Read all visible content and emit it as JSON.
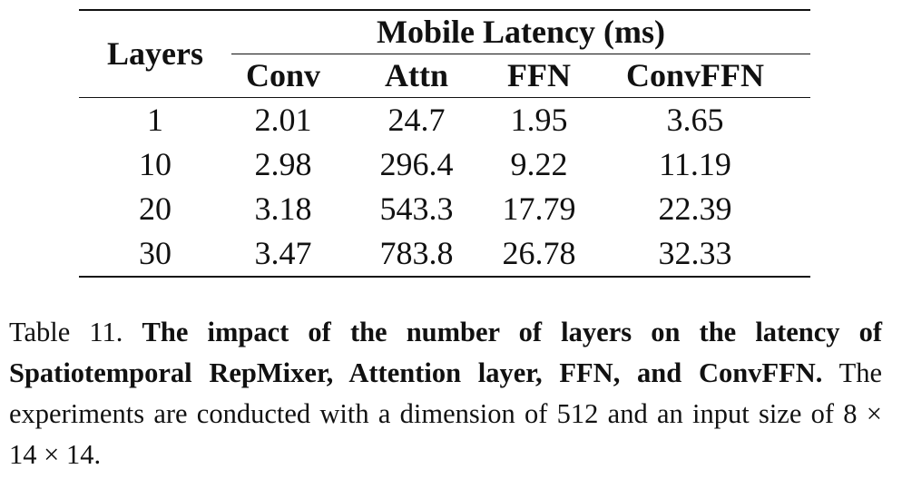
{
  "table": {
    "row_header_label": "Layers",
    "group_header_label": "Mobile Latency (ms)",
    "columns": [
      "Conv",
      "Attn",
      "FFN",
      "ConvFFN"
    ],
    "rows": [
      {
        "layers": "1",
        "values": [
          "2.01",
          "24.7",
          "1.95",
          "3.65"
        ]
      },
      {
        "layers": "10",
        "values": [
          "2.98",
          "296.4",
          "9.22",
          "11.19"
        ]
      },
      {
        "layers": "20",
        "values": [
          "3.18",
          "543.3",
          "17.79",
          "22.39"
        ]
      },
      {
        "layers": "30",
        "values": [
          "3.47",
          "783.8",
          "26.78",
          "32.33"
        ]
      }
    ]
  },
  "caption": {
    "label": "Table 11.",
    "bold_text": "The impact of the number of layers on the latency of Spatiotemporal RepMixer, Attention layer, FFN, and ConvFFN.",
    "plain_text": "The experiments are conducted with a dimension of 512 and an input size of 8 × 14 × 14."
  }
}
